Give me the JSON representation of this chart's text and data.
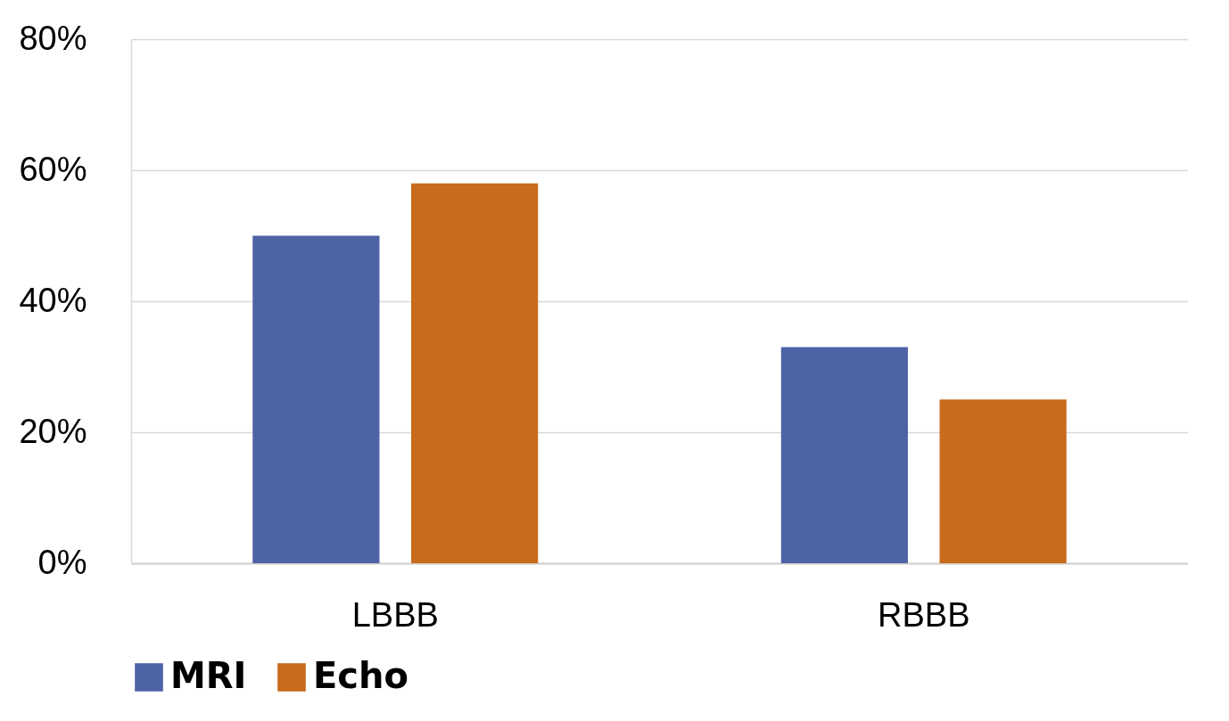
{
  "chart_data": {
    "type": "bar",
    "categories": [
      "LBBB",
      "RBBB"
    ],
    "series": [
      {
        "name": "MRI",
        "color": "#4e63a6",
        "values": [
          50,
          33
        ]
      },
      {
        "name": "Echo",
        "color": "#c86b1c",
        "values": [
          58,
          25
        ]
      }
    ],
    "ylim": [
      0,
      80
    ],
    "yticks": [
      {
        "value": 0,
        "label": "0%"
      },
      {
        "value": 20,
        "label": "20%"
      },
      {
        "value": 40,
        "label": "40%"
      },
      {
        "value": 60,
        "label": "60%"
      },
      {
        "value": 80,
        "label": "80%"
      }
    ],
    "grid": "y",
    "legend": "bottom"
  }
}
